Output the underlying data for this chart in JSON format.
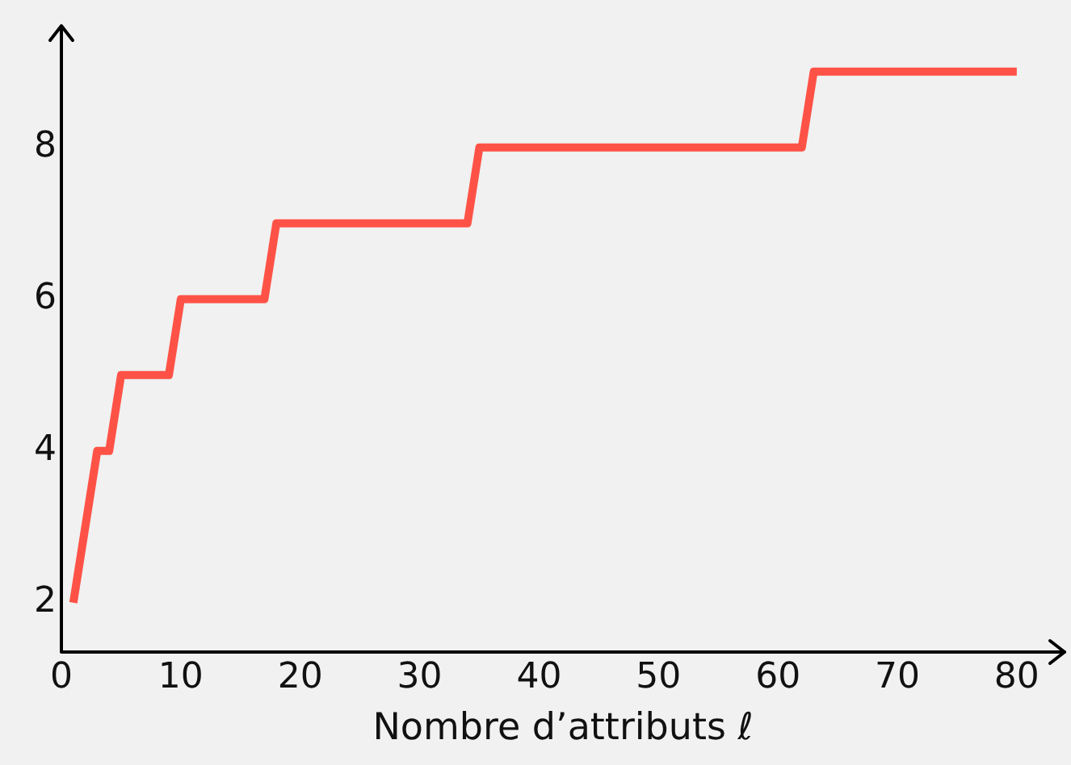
{
  "chart_data": {
    "type": "line",
    "xlabel": "Nombre d’attributs ℓ",
    "x": [
      1,
      3,
      4,
      5,
      9,
      10,
      17,
      18,
      34,
      35,
      62,
      63,
      80
    ],
    "series": [
      {
        "color": "#ff5247",
        "values": [
          2,
          4,
          4,
          5,
          5,
          6,
          6,
          7,
          7,
          8,
          8,
          9,
          9
        ]
      }
    ],
    "xlim": [
      0,
      84
    ],
    "xticks": [
      0,
      10,
      20,
      30,
      40,
      50,
      60,
      70,
      80
    ],
    "ylim": [
      1.35,
      9.6
    ],
    "yticks": [
      2,
      4,
      6,
      8
    ],
    "grid": false,
    "legend": false,
    "marker": "none",
    "line_style": "solid"
  }
}
